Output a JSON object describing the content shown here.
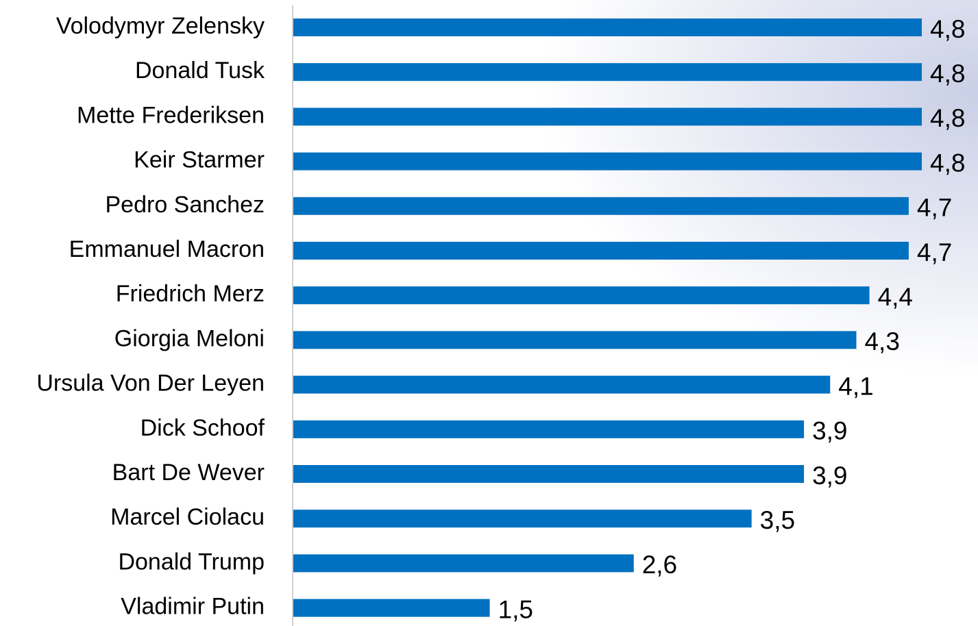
{
  "chart_data": {
    "type": "bar",
    "orientation": "horizontal",
    "color": "#0070c0",
    "categories": [
      "Volodymyr Zelensky",
      "Donald Tusk",
      "Mette Frederiksen",
      "Keir Starmer",
      "Pedro Sanchez",
      "Emmanuel Macron",
      "Friedrich Merz",
      "Giorgia Meloni",
      "Ursula Von Der Leyen",
      "Dick Schoof",
      "Bart De Wever",
      "Marcel Ciolacu",
      "Donald Trump",
      "Vladimir Putin"
    ],
    "values": [
      4.8,
      4.8,
      4.8,
      4.8,
      4.7,
      4.7,
      4.4,
      4.3,
      4.1,
      3.9,
      3.9,
      3.5,
      2.6,
      1.5
    ],
    "value_labels": [
      "4,8",
      "4,8",
      "4,8",
      "4,8",
      "4,7",
      "4,7",
      "4,4",
      "4,3",
      "4,1",
      "3,9",
      "3,9",
      "3,5",
      "2,6",
      "1,5"
    ]
  }
}
